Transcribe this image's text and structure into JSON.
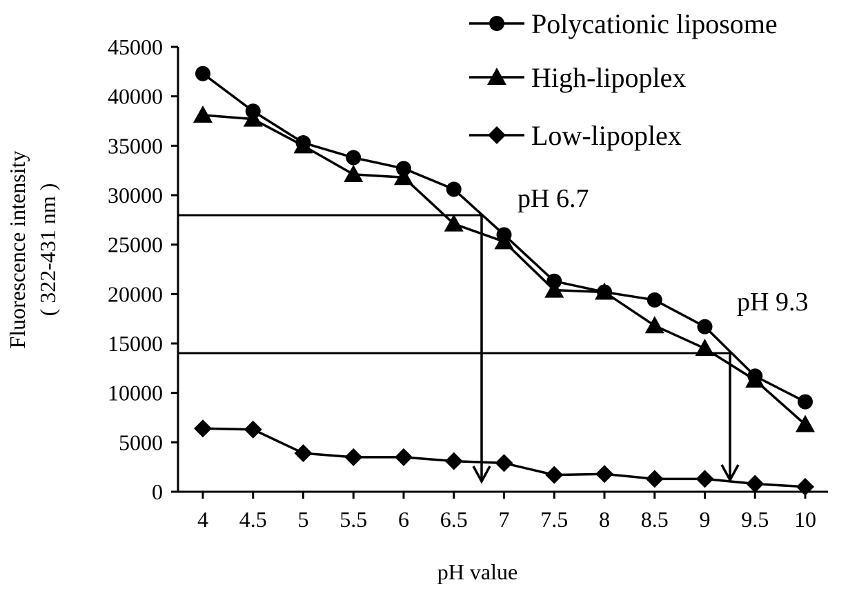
{
  "chart_data": {
    "type": "line",
    "title": "",
    "xlabel": "pH value",
    "ylabel": [
      "Fluorescence intensity",
      "( 322-431 nm )"
    ],
    "categories": [
      "4",
      "4.5",
      "5",
      "5.5",
      "6",
      "6.5",
      "7",
      "7.5",
      "8",
      "8.5",
      "9",
      "9.5",
      "10"
    ],
    "x": [
      4,
      4.5,
      5,
      5.5,
      6,
      6.5,
      7,
      7.5,
      8,
      8.5,
      9,
      9.5,
      10
    ],
    "ylim": [
      0,
      45000
    ],
    "yticks": [
      0,
      5000,
      10000,
      15000,
      20000,
      25000,
      30000,
      35000,
      40000,
      45000
    ],
    "ytick_labels": [
      "0",
      "5000",
      "10000",
      "15000",
      "20000",
      "25000",
      "30000",
      "35000",
      "40000",
      "45000"
    ],
    "grid": false,
    "legend_position": "top-right",
    "series": [
      {
        "name": "Polycationic liposome",
        "marker": "circle",
        "values": [
          42300,
          38500,
          35300,
          33800,
          32700,
          30600,
          26000,
          21300,
          20200,
          19400,
          16700,
          11700,
          9100
        ]
      },
      {
        "name": "High-lipoplex",
        "marker": "triangle",
        "values": [
          38100,
          37700,
          35000,
          32100,
          31800,
          27100,
          25300,
          20400,
          20200,
          16800,
          14500,
          11300,
          6800
        ]
      },
      {
        "name": "Low-lipoplex",
        "marker": "diamond",
        "values": [
          6400,
          6300,
          3900,
          3500,
          3500,
          3100,
          2900,
          1700,
          1800,
          1300,
          1300,
          800,
          500
        ]
      }
    ],
    "annotations": [
      {
        "text": "pH 6.7",
        "x": 6.8,
        "y": 28000
      },
      {
        "text": "pH 9.3",
        "x": 9.25,
        "y": 14000
      }
    ]
  }
}
